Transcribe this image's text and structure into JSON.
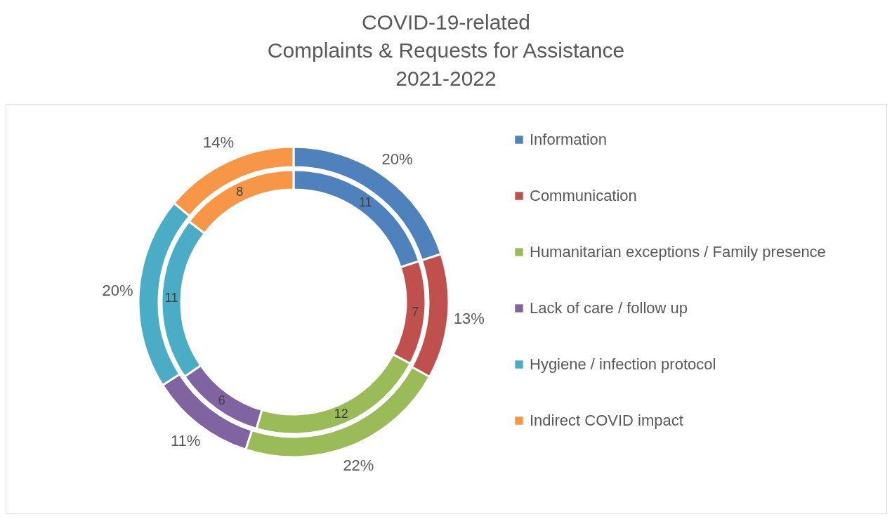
{
  "chart_data": {
    "type": "donut",
    "title": "COVID-19-related\nComplaints & Requests for Assistance\n2021-2022",
    "categories": [
      "Information",
      "Communication",
      "Humanitarian exceptions / Family presence",
      "Lack of care / follow up",
      "Hygiene / infection protocol",
      "Indirect COVID impact"
    ],
    "colors": [
      "#4f81bd",
      "#c0504d",
      "#9bbb59",
      "#8064a2",
      "#4bacc6",
      "#f79646"
    ],
    "series": [
      {
        "values": [
          11,
          7,
          12,
          6,
          11,
          8
        ],
        "value_labels": [
          "11",
          "7",
          "12",
          "6",
          "11",
          "8"
        ]
      },
      {
        "values": [
          20,
          13,
          22,
          11,
          20,
          14
        ],
        "value_labels": [
          "20%",
          "13%",
          "22%",
          "11%",
          "20%",
          "14%"
        ]
      }
    ],
    "legend": "right"
  }
}
